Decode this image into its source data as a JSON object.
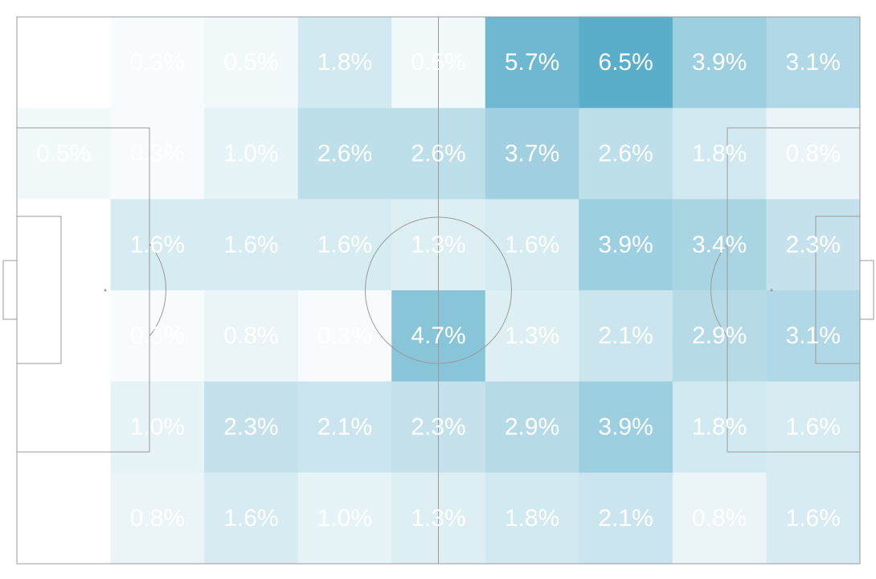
{
  "chart_data": {
    "type": "heatmap",
    "rows": 6,
    "cols": 9,
    "value_unit": "%",
    "color_scale": {
      "low": "#ffffff",
      "high": "#4ea8c6",
      "max_value": 7.0
    },
    "line_color": "#9a9a9a",
    "values": [
      [
        0.0,
        0.3,
        0.5,
        1.8,
        0.5,
        5.7,
        6.5,
        3.9,
        3.1
      ],
      [
        0.5,
        0.3,
        1.0,
        2.6,
        2.6,
        3.7,
        2.6,
        1.8,
        0.8
      ],
      [
        0.0,
        1.6,
        1.6,
        1.6,
        1.3,
        1.6,
        3.9,
        3.4,
        2.3
      ],
      [
        0.0,
        0.3,
        0.8,
        0.3,
        4.7,
        1.3,
        2.1,
        2.9,
        3.1
      ],
      [
        0.0,
        1.0,
        2.3,
        2.1,
        2.3,
        2.9,
        3.9,
        1.8,
        1.6
      ],
      [
        0.0,
        0.8,
        1.6,
        1.0,
        1.3,
        1.8,
        2.1,
        0.8,
        1.6
      ]
    ],
    "labels": [
      [
        "",
        "0.3%",
        "0.5%",
        "1.8%",
        "0.5%",
        "5.7%",
        "6.5%",
        "3.9%",
        "3.1%"
      ],
      [
        "0.5%",
        "0.3%",
        "1.0%",
        "2.6%",
        "2.6%",
        "3.7%",
        "2.6%",
        "1.8%",
        "0.8%"
      ],
      [
        "",
        "1.6%",
        "1.6%",
        "1.6%",
        "1.3%",
        "1.6%",
        "3.9%",
        "3.4%",
        "2.3%"
      ],
      [
        "",
        "0.3%",
        "0.8%",
        "0.3%",
        "4.7%",
        "1.3%",
        "2.1%",
        "2.9%",
        "3.1%"
      ],
      [
        "",
        "1.0%",
        "2.3%",
        "2.1%",
        "2.3%",
        "2.9%",
        "3.9%",
        "1.8%",
        "1.6%"
      ],
      [
        "",
        "0.8%",
        "1.6%",
        "1.0%",
        "1.3%",
        "1.8%",
        "2.1%",
        "0.8%",
        "1.6%"
      ]
    ]
  }
}
